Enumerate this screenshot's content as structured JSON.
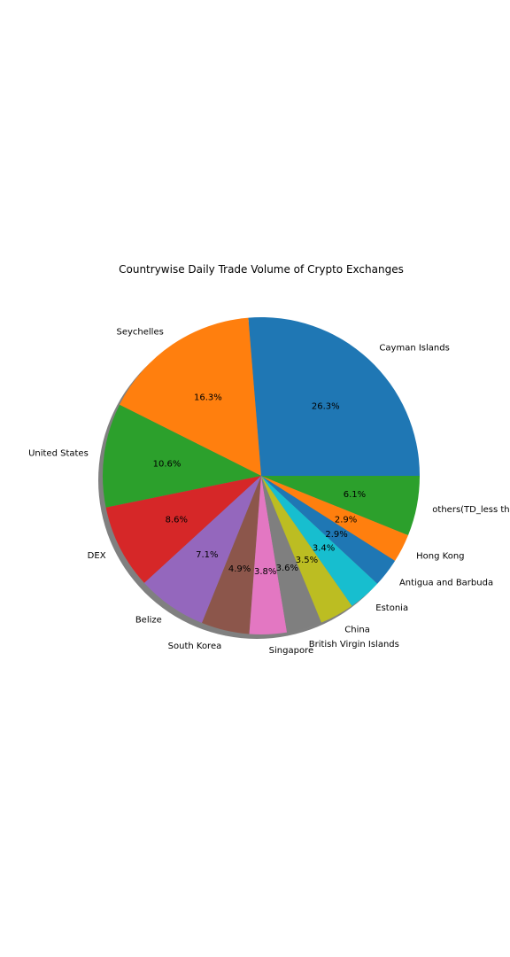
{
  "chart_data": {
    "type": "pie",
    "title": "Countrywise Daily Trade Volume of Crypto Exchanges",
    "shadow": true,
    "start_angle_deg": 0,
    "direction": "counterclockwise",
    "slices": [
      {
        "label": "Cayman Islands",
        "pct_label": "26.3%",
        "value": 26.3,
        "color": "#1f77b4"
      },
      {
        "label": "Seychelles",
        "pct_label": "16.3%",
        "value": 16.3,
        "color": "#ff7f0e"
      },
      {
        "label": "United States",
        "pct_label": "10.6%",
        "value": 10.6,
        "color": "#2ca02c"
      },
      {
        "label": "DEX",
        "pct_label": "8.6%",
        "value": 8.6,
        "color": "#d62728"
      },
      {
        "label": "Belize",
        "pct_label": "7.1%",
        "value": 7.1,
        "color": "#9467bd"
      },
      {
        "label": "South Korea",
        "pct_label": "4.9%",
        "value": 4.9,
        "color": "#8c564b"
      },
      {
        "label": "Singapore",
        "pct_label": "3.8%",
        "value": 3.8,
        "color": "#e377c2"
      },
      {
        "label": "British Virgin Islands",
        "pct_label": "3.6%",
        "value": 3.6,
        "color": "#7f7f7f"
      },
      {
        "label": "China",
        "pct_label": "3.5%",
        "value": 3.5,
        "color": "#bcbd22"
      },
      {
        "label": "Estonia",
        "pct_label": "3.4%",
        "value": 3.4,
        "color": "#17becf"
      },
      {
        "label": "Antigua and Barbuda",
        "pct_label": "2.9%",
        "value": 2.9,
        "color": "#1f77b4"
      },
      {
        "label": "Hong Kong",
        "pct_label": "2.9%",
        "value": 2.9,
        "color": "#ff7f0e"
      },
      {
        "label": "others(TD_less th",
        "pct_label": "6.1%",
        "value": 6.1,
        "color": "#2ca02c"
      }
    ]
  }
}
